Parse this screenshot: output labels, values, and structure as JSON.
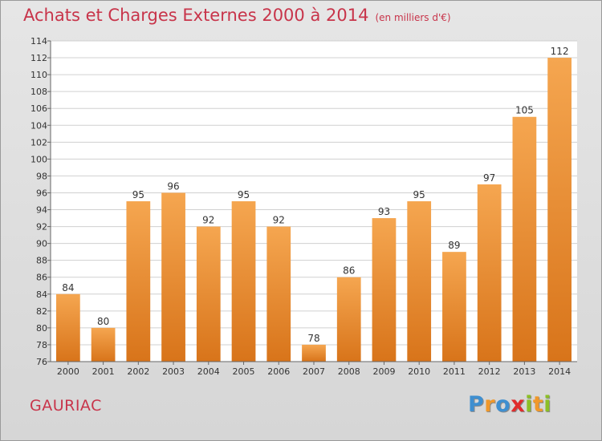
{
  "chart_data": {
    "type": "bar",
    "title": "Achats et Charges Externes 2000 à 2014",
    "unit_note": "(en milliers d'€)",
    "xlabel": "",
    "ylabel": "",
    "categories": [
      "2000",
      "2001",
      "2002",
      "2003",
      "2004",
      "2005",
      "2006",
      "2007",
      "2008",
      "2009",
      "2010",
      "2011",
      "2012",
      "2013",
      "2014"
    ],
    "values": [
      84,
      80,
      95,
      96,
      92,
      95,
      92,
      78,
      86,
      93,
      95,
      89,
      97,
      105,
      112
    ],
    "ylim": [
      76,
      114
    ],
    "yticks": [
      76,
      78,
      80,
      82,
      84,
      86,
      88,
      90,
      92,
      94,
      96,
      98,
      100,
      102,
      104,
      106,
      108,
      110,
      112,
      114
    ],
    "grid": true,
    "legend": "none"
  },
  "commune": "GAURIAC",
  "brand": {
    "letters": [
      "P",
      "r",
      "o",
      "x",
      "i",
      "t",
      "i"
    ],
    "colors": [
      "#3f8fd0",
      "#f0982a",
      "#3f8fd0",
      "#e02c2c",
      "#8cbf26",
      "#f0982a",
      "#8cbf26"
    ]
  },
  "colors": {
    "bar_light": "#f5a650",
    "bar_dark": "#d8741a",
    "accent": "#c8344a"
  }
}
